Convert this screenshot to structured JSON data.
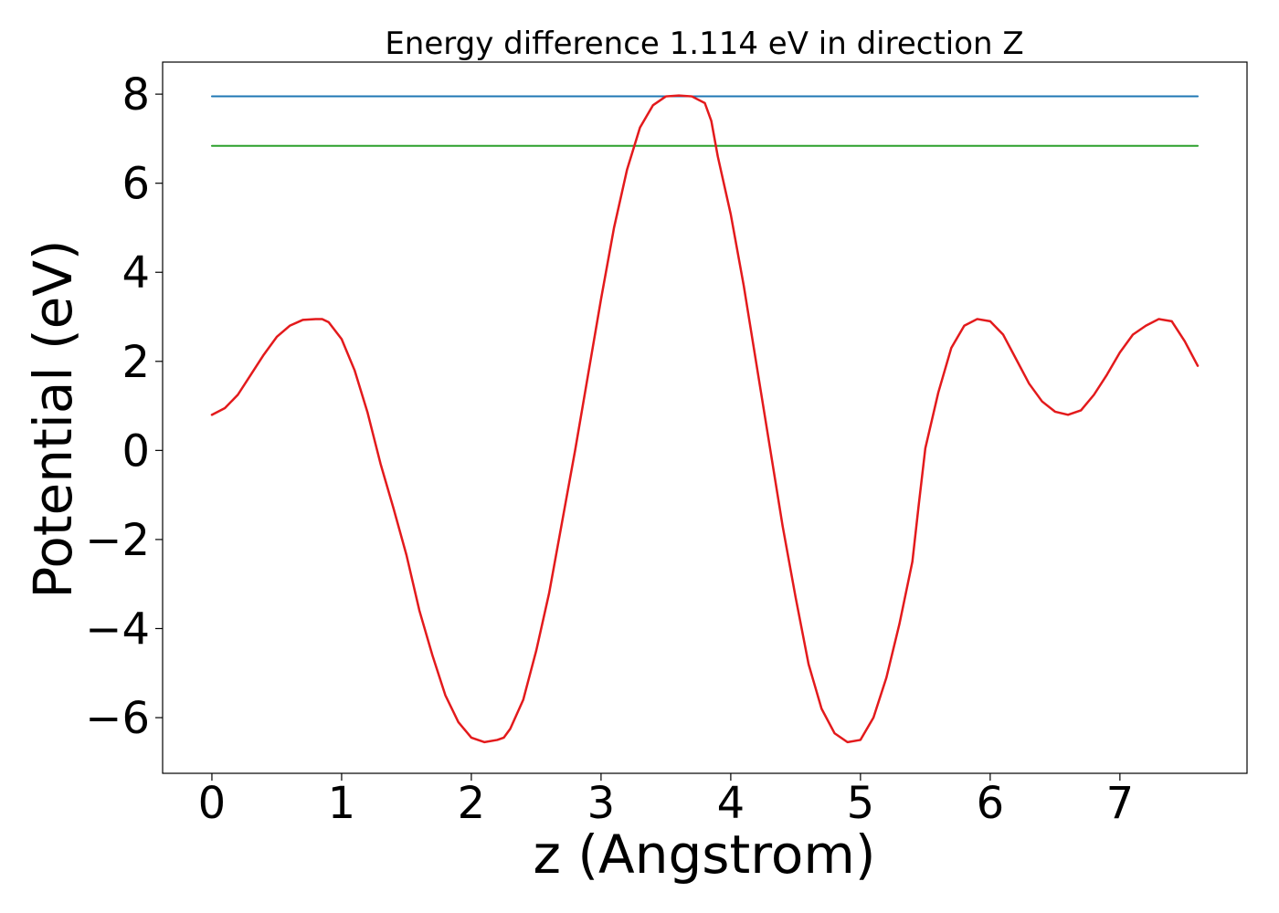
{
  "chart_data": {
    "type": "line",
    "title": "Energy difference 1.114 eV in direction Z",
    "xlabel": "z (Angstrom)",
    "ylabel": "Potential (eV)",
    "xlim": [
      -0.38,
      7.98
    ],
    "ylim": [
      -7.25,
      8.72
    ],
    "xticks": [
      0,
      1,
      2,
      3,
      4,
      5,
      6,
      7
    ],
    "xtick_labels": [
      "0",
      "1",
      "2",
      "3",
      "4",
      "5",
      "6",
      "7"
    ],
    "yticks": [
      -6,
      -4,
      -2,
      0,
      2,
      4,
      6,
      8
    ],
    "ytick_labels": [
      "−6",
      "−4",
      "−2",
      "0",
      "2",
      "4",
      "6",
      "8"
    ],
    "grid": false,
    "series": [
      {
        "color": "#1f77b4",
        "x": [
          0,
          7.6
        ],
        "y": [
          7.95,
          7.95
        ]
      },
      {
        "color": "#2ca02c",
        "x": [
          0,
          7.6
        ],
        "y": [
          6.84,
          6.84
        ]
      },
      {
        "color": "#e31a1c",
        "x": [
          0,
          0.1,
          0.2,
          0.3,
          0.4,
          0.5,
          0.6,
          0.7,
          0.8,
          0.85,
          0.9,
          1.0,
          1.1,
          1.2,
          1.3,
          1.4,
          1.5,
          1.6,
          1.7,
          1.8,
          1.9,
          2.0,
          2.1,
          2.2,
          2.25,
          2.3,
          2.4,
          2.5,
          2.6,
          2.7,
          2.8,
          2.9,
          3.0,
          3.1,
          3.2,
          3.3,
          3.4,
          3.5,
          3.6,
          3.7,
          3.8,
          3.85,
          3.9,
          4.0,
          4.1,
          4.2,
          4.3,
          4.4,
          4.5,
          4.6,
          4.7,
          4.8,
          4.9,
          5.0,
          5.1,
          5.2,
          5.3,
          5.4,
          5.45,
          5.5,
          5.6,
          5.7,
          5.8,
          5.9,
          6.0,
          6.1,
          6.2,
          6.3,
          6.4,
          6.5,
          6.6,
          6.7,
          6.8,
          6.9,
          7.0,
          7.1,
          7.2,
          7.3,
          7.4,
          7.5,
          7.6
        ],
        "y": [
          0.8,
          0.95,
          1.25,
          1.7,
          2.15,
          2.55,
          2.8,
          2.93,
          2.95,
          2.95,
          2.88,
          2.5,
          1.8,
          0.85,
          -0.3,
          -1.3,
          -2.35,
          -3.6,
          -4.6,
          -5.5,
          -6.1,
          -6.45,
          -6.55,
          -6.5,
          -6.45,
          -6.25,
          -5.6,
          -4.5,
          -3.2,
          -1.6,
          0.0,
          1.7,
          3.4,
          5.0,
          6.3,
          7.25,
          7.75,
          7.95,
          7.97,
          7.95,
          7.8,
          7.4,
          6.6,
          5.3,
          3.7,
          1.9,
          0.1,
          -1.7,
          -3.3,
          -4.8,
          -5.8,
          -6.35,
          -6.55,
          -6.5,
          -6.0,
          -5.1,
          -3.9,
          -2.5,
          -1.2,
          0.05,
          1.3,
          2.3,
          2.8,
          2.95,
          2.9,
          2.6,
          2.05,
          1.5,
          1.1,
          0.87,
          0.8,
          0.9,
          1.25,
          1.7,
          2.2,
          2.6,
          2.8,
          2.95,
          2.9,
          2.45,
          1.9
        ]
      }
    ]
  }
}
